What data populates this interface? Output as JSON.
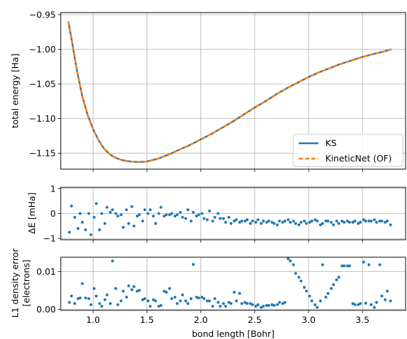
{
  "chart_data": [
    {
      "type": "line",
      "ylabel": "total energy [Ha]",
      "xlim": [
        0.7,
        3.9
      ],
      "ylim": [
        -1.173,
        -0.947
      ],
      "xticks": [
        1.0,
        1.5,
        2.0,
        2.5,
        3.0,
        3.5
      ],
      "yticks": [
        -0.95,
        -1.0,
        -1.05,
        -1.1,
        -1.15
      ],
      "ytick_labels": [
        "−0.95",
        "−1.00",
        "−1.05",
        "−1.10",
        "−1.15"
      ],
      "grid": true,
      "legend": "lower-right",
      "series": [
        {
          "name": "KS",
          "color": "#1f77b4",
          "style": "solid",
          "x": [
            0.77,
            0.8,
            0.85,
            0.9,
            0.95,
            1.0,
            1.05,
            1.1,
            1.15,
            1.2,
            1.25,
            1.3,
            1.35,
            1.4,
            1.45,
            1.5,
            1.55,
            1.6,
            1.7,
            1.8,
            1.9,
            2.0,
            2.1,
            2.2,
            2.3,
            2.4,
            2.5,
            2.6,
            2.7,
            2.8,
            2.9,
            3.0,
            3.1,
            3.2,
            3.3,
            3.4,
            3.5,
            3.6,
            3.7,
            3.77
          ],
          "values": [
            -0.96,
            -0.985,
            -1.03,
            -1.068,
            -1.095,
            -1.115,
            -1.131,
            -1.143,
            -1.151,
            -1.156,
            -1.159,
            -1.161,
            -1.162,
            -1.1625,
            -1.1625,
            -1.162,
            -1.16,
            -1.158,
            -1.152,
            -1.145,
            -1.138,
            -1.13,
            -1.122,
            -1.113,
            -1.104,
            -1.094,
            -1.084,
            -1.075,
            -1.065,
            -1.056,
            -1.048,
            -1.04,
            -1.033,
            -1.027,
            -1.021,
            -1.016,
            -1.011,
            -1.007,
            -1.003,
            -1.0
          ]
        },
        {
          "name": "KineticNet (OF)",
          "color": "#ff7f0e",
          "style": "dashed",
          "x": [
            0.77,
            0.8,
            0.85,
            0.9,
            0.95,
            1.0,
            1.05,
            1.1,
            1.15,
            1.2,
            1.25,
            1.3,
            1.35,
            1.4,
            1.45,
            1.5,
            1.55,
            1.6,
            1.7,
            1.8,
            1.9,
            2.0,
            2.1,
            2.2,
            2.3,
            2.4,
            2.5,
            2.6,
            2.7,
            2.8,
            2.9,
            3.0,
            3.1,
            3.2,
            3.3,
            3.4,
            3.5,
            3.6,
            3.7,
            3.77
          ],
          "values": [
            -0.96,
            -0.985,
            -1.03,
            -1.068,
            -1.095,
            -1.115,
            -1.131,
            -1.143,
            -1.151,
            -1.156,
            -1.159,
            -1.161,
            -1.162,
            -1.1625,
            -1.1625,
            -1.162,
            -1.16,
            -1.158,
            -1.152,
            -1.145,
            -1.138,
            -1.13,
            -1.122,
            -1.113,
            -1.104,
            -1.094,
            -1.084,
            -1.075,
            -1.065,
            -1.056,
            -1.048,
            -1.04,
            -1.033,
            -1.027,
            -1.021,
            -1.016,
            -1.011,
            -1.007,
            -1.003,
            -1.0
          ]
        }
      ]
    },
    {
      "type": "scatter",
      "ylabel": "ΔE [mHa]",
      "xlim": [
        0.7,
        3.9
      ],
      "ylim": [
        -1.05,
        1.05
      ],
      "xticks": [
        1.0,
        1.5,
        2.0,
        2.5,
        3.0,
        3.5
      ],
      "yticks": [
        1,
        0,
        -1
      ],
      "ytick_labels": [
        "1",
        "0",
        "−1"
      ],
      "grid": true,
      "series": [
        {
          "color": "#1f77b4",
          "x": [
            0.78,
            0.8,
            0.83,
            0.86,
            0.88,
            0.9,
            0.93,
            0.96,
            0.98,
            1.01,
            1.03,
            1.06,
            1.08,
            1.11,
            1.13,
            1.16,
            1.18,
            1.21,
            1.23,
            1.26,
            1.28,
            1.31,
            1.33,
            1.36,
            1.38,
            1.41,
            1.43,
            1.46,
            1.48,
            1.51,
            1.53,
            1.56,
            1.58,
            1.61,
            1.63,
            1.66,
            1.68,
            1.71,
            1.73,
            1.76,
            1.78,
            1.81,
            1.83,
            1.86,
            1.88,
            1.91,
            1.93,
            1.96,
            1.98,
            2.01,
            2.03,
            2.06,
            2.08,
            2.11,
            2.13,
            2.16,
            2.18,
            2.21,
            2.23,
            2.26,
            2.28,
            2.31,
            2.33,
            2.36,
            2.38,
            2.41,
            2.43,
            2.46,
            2.48,
            2.51,
            2.53,
            2.56,
            2.58,
            2.61,
            2.63,
            2.66,
            2.68,
            2.71,
            2.73,
            2.76,
            2.78,
            2.81,
            2.83,
            2.86,
            2.88,
            2.91,
            2.93,
            2.96,
            2.98,
            3.01,
            3.03,
            3.06,
            3.08,
            3.11,
            3.13,
            3.16,
            3.18,
            3.21,
            3.23,
            3.26,
            3.28,
            3.31,
            3.33,
            3.36,
            3.38,
            3.41,
            3.43,
            3.46,
            3.48,
            3.51,
            3.53,
            3.56,
            3.58,
            3.61,
            3.63,
            3.66,
            3.68,
            3.71,
            3.73,
            3.76
          ],
          "values": [
            -0.75,
            0.3,
            -0.15,
            -0.6,
            0.0,
            -0.35,
            -0.65,
            0.0,
            -0.85,
            -0.15,
            0.4,
            -0.65,
            0.0,
            -0.4,
            0.25,
            0.05,
            0.15,
            0.0,
            -0.1,
            -0.05,
            -0.55,
            0.15,
            -0.4,
            0.28,
            -0.5,
            -0.1,
            -0.05,
            -0.3,
            0.15,
            0.0,
            0.15,
            -0.1,
            -0.4,
            0.0,
            0.25,
            -0.1,
            -0.05,
            -0.05,
            0.0,
            -0.1,
            -0.05,
            0.05,
            -0.15,
            -0.2,
            0.15,
            -0.3,
            0.05,
            -0.1,
            -0.05,
            0.0,
            -0.2,
            -0.25,
            0.1,
            -0.3,
            -0.15,
            0.0,
            -0.2,
            -0.2,
            -0.35,
            -0.15,
            -0.4,
            -0.3,
            -0.25,
            -0.35,
            -0.3,
            -0.3,
            -0.25,
            -0.4,
            -0.3,
            -0.35,
            -0.25,
            -0.4,
            -0.3,
            -0.35,
            -0.3,
            -0.35,
            -0.4,
            -0.45,
            -0.3,
            -0.35,
            -0.3,
            -0.25,
            -0.35,
            -0.3,
            -0.4,
            -0.45,
            -0.35,
            -0.3,
            -0.4,
            -0.35,
            -0.3,
            -0.25,
            -0.3,
            -0.45,
            -0.4,
            -0.3,
            -0.3,
            -0.35,
            -0.45,
            -0.3,
            -0.4,
            -0.3,
            -0.35,
            -0.3,
            -0.35,
            -0.35,
            -0.3,
            -0.4,
            -0.35,
            -0.25,
            -0.3,
            -0.3,
            -0.3,
            -0.25,
            -0.35,
            -0.3,
            -0.3,
            -0.35,
            -0.3,
            -0.45
          ]
        }
      ]
    },
    {
      "type": "scatter",
      "ylabel": "L1 density error",
      "ylabel2": "[electrons]",
      "xlabel": "bond length [Bohr]",
      "xlim": [
        0.7,
        3.9
      ],
      "ylim": [
        -0.0003,
        0.0138
      ],
      "xticks": [
        1.0,
        1.5,
        2.0,
        2.5,
        3.0,
        3.5
      ],
      "xtick_labels": [
        "1.0",
        "1.5",
        "2.0",
        "2.5",
        "3.0",
        "3.5"
      ],
      "yticks": [
        0.01,
        0.0
      ],
      "ytick_labels": [
        "0.01",
        "0.00"
      ],
      "grid": true,
      "series": [
        {
          "color": "#1f77b4",
          "x": [
            0.78,
            0.8,
            0.83,
            0.86,
            0.88,
            0.9,
            0.93,
            0.96,
            0.98,
            1.01,
            1.03,
            1.06,
            1.08,
            1.11,
            1.13,
            1.16,
            1.18,
            1.21,
            1.23,
            1.26,
            1.28,
            1.31,
            1.33,
            1.36,
            1.38,
            1.41,
            1.43,
            1.46,
            1.48,
            1.51,
            1.53,
            1.56,
            1.58,
            1.61,
            1.63,
            1.66,
            1.68,
            1.71,
            1.73,
            1.76,
            1.78,
            1.81,
            1.83,
            1.86,
            1.88,
            1.91,
            1.93,
            1.96,
            1.98,
            2.01,
            2.03,
            2.06,
            2.08,
            2.11,
            2.13,
            2.16,
            2.18,
            2.21,
            2.23,
            2.26,
            2.28,
            2.31,
            2.33,
            2.36,
            2.38,
            2.41,
            2.43,
            2.46,
            2.48,
            2.51,
            2.53,
            2.56,
            2.58,
            2.61,
            2.63,
            2.66,
            2.68,
            2.71,
            2.73,
            2.76,
            2.78,
            2.81,
            2.83,
            2.86,
            2.88,
            2.91,
            2.93,
            2.96,
            2.98,
            3.01,
            3.03,
            3.06,
            3.08,
            3.11,
            3.13,
            3.16,
            3.18,
            3.21,
            3.23,
            3.26,
            3.28,
            3.31,
            3.33,
            3.36,
            3.38,
            3.41,
            3.43,
            3.46,
            3.48,
            3.51,
            3.53,
            3.56,
            3.58,
            3.61,
            3.63,
            3.66,
            3.68,
            3.71,
            3.73,
            3.76
          ],
          "values": [
            0.0018,
            0.0035,
            0.0015,
            0.0028,
            0.003,
            0.0068,
            0.003,
            0.0028,
            0.0012,
            0.0055,
            0.0035,
            0.0015,
            0.0008,
            0.0025,
            0.0038,
            0.0015,
            0.0128,
            0.0055,
            0.0012,
            0.0022,
            0.0048,
            0.0032,
            0.0062,
            0.0052,
            0.006,
            0.0048,
            0.005,
            0.0025,
            0.0028,
            0.0022,
            0.0008,
            0.0025,
            0.0022,
            0.0008,
            0.001,
            0.0048,
            0.0045,
            0.0055,
            0.0028,
            0.0032,
            0.0015,
            0.0022,
            0.0038,
            0.0022,
            0.0015,
            0.0028,
            0.0119,
            0.0032,
            0.003,
            0.0032,
            0.0028,
            0.0022,
            0.0022,
            0.0008,
            0.0028,
            0.0018,
            0.0008,
            0.0015,
            0.0008,
            0.0018,
            0.0015,
            0.0045,
            0.0022,
            0.0042,
            0.0015,
            0.0018,
            0.0015,
            0.0015,
            0.0012,
            0.0008,
            0.0012,
            0.0005,
            0.0008,
            0.001,
            0.001,
            0.0012,
            0.001,
            0.0012,
            0.0018,
            0.0015,
            0.0018,
            0.0134,
            0.0128,
            0.0118,
            0.0095,
            0.0085,
            0.0075,
            0.0058,
            0.0048,
            0.0035,
            0.0022,
            0.0012,
            0.0005,
            0.0022,
            0.0118,
            0.0032,
            0.0042,
            0.0055,
            0.0065,
            0.0078,
            0.0085,
            0.0115,
            0.0115,
            0.0115,
            0.0115,
            0.0015,
            0.0012,
            0.0012,
            0.0015,
            0.0125,
            0.0016,
            0.0118,
            0.0012,
            0.0005,
            0.0018,
            0.0118,
            0.0035,
            0.0025,
            0.0048,
            0.0022
          ]
        }
      ]
    }
  ]
}
